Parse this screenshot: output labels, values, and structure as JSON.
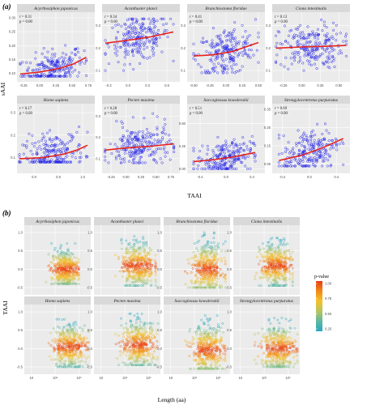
{
  "chart_data": [
    {
      "type": "scatter",
      "panel_label": "(a)",
      "xlabel": "TAAI",
      "ylabel": "sAAI",
      "grid": true,
      "marker_color": "#1f1fe6",
      "trend_color": "#e6231e",
      "panels": [
        {
          "name": "Acyrthosiphon japonicus",
          "r": "r = 0.31",
          "p": "p = 0.00",
          "xticks": [
            "-0.25",
            "0.00",
            "0.25",
            "0.50",
            "0.75"
          ],
          "yticks": [
            "0.10",
            "0.15",
            "0.20",
            "0.25",
            "0.30"
          ],
          "x_range": [
            -0.35,
            0.85
          ],
          "y_range": [
            0.07,
            0.32
          ],
          "cloud": {
            "x": [
              -0.3,
              0.72
            ],
            "y": [
              0.09,
              0.24
            ]
          },
          "trend": {
            "x": [
              -0.3,
              0.0,
              0.3,
              0.5,
              0.72
            ],
            "y": [
              0.098,
              0.105,
              0.118,
              0.132,
              0.158
            ]
          }
        },
        {
          "name": "Acanthaster planci",
          "r": "r = 0.34",
          "p": "p = 0.00",
          "xticks": [
            "-0.3",
            "0.0",
            "0.3",
            "0.6"
          ],
          "yticks": [
            "0.1",
            "0.2",
            "0.3"
          ],
          "x_range": [
            -0.4,
            0.8
          ],
          "y_range": [
            0.05,
            0.36
          ],
          "cloud": {
            "x": [
              -0.35,
              0.7
            ],
            "y": [
              0.1,
              0.33
            ]
          },
          "trend": {
            "x": [
              -0.35,
              0.0,
              0.35,
              0.7
            ],
            "y": [
              0.222,
              0.235,
              0.25,
              0.272
            ]
          }
        },
        {
          "name": "Branchiostoma floridae",
          "r": "r = 0.41",
          "p": "p = 0.00",
          "xticks": [
            "-0.50",
            "-0.25",
            "0.00",
            "0.25",
            "0.50"
          ],
          "yticks": [
            "0.1",
            "0.2",
            "0.3"
          ],
          "x_range": [
            -0.6,
            0.6
          ],
          "y_range": [
            0.05,
            0.36
          ],
          "cloud": {
            "x": [
              -0.5,
              0.5
            ],
            "y": [
              0.09,
              0.33
            ]
          },
          "trend": {
            "x": [
              -0.5,
              -0.2,
              0.1,
              0.3,
              0.5
            ],
            "y": [
              0.165,
              0.17,
              0.185,
              0.205,
              0.225
            ]
          }
        },
        {
          "name": "Ciona intestinalis",
          "r": "r = 0.13",
          "p": "p = 0.00",
          "xticks": [
            "-0.25",
            "0.00",
            "0.25",
            "0.50"
          ],
          "yticks": [
            "0.1",
            "0.2",
            "0.3"
          ],
          "x_range": [
            -0.4,
            0.65
          ],
          "y_range": [
            0.05,
            0.36
          ],
          "cloud": {
            "x": [
              -0.35,
              0.6
            ],
            "y": [
              0.1,
              0.33
            ]
          },
          "trend": {
            "x": [
              -0.35,
              0.0,
              0.3,
              0.6
            ],
            "y": [
              0.2,
              0.205,
              0.208,
              0.212
            ]
          }
        },
        {
          "name": "Homo sapiens",
          "r": "r = 0.17",
          "p": "p = 0.00",
          "xticks": [
            "0.0",
            "0.5",
            "1.0"
          ],
          "yticks": [
            "0.1",
            "0.2",
            "0.3"
          ],
          "x_range": [
            -0.35,
            1.25
          ],
          "y_range": [
            0.03,
            0.34
          ],
          "cloud": {
            "x": [
              -0.3,
              1.1
            ],
            "y": [
              0.08,
              0.3
            ]
          },
          "trend": {
            "x": [
              -0.3,
              0.2,
              0.6,
              0.9,
              1.1
            ],
            "y": [
              0.095,
              0.1,
              0.115,
              0.135,
              0.155
            ]
          }
        },
        {
          "name": "Pecten maxima",
          "r": "r = 0.28",
          "p": "p = 0.00",
          "xticks": [
            "-0.25",
            "0.00",
            "0.25",
            "0.50",
            "0.75"
          ],
          "yticks": [
            "0.1",
            "0.2",
            "0.3"
          ],
          "x_range": [
            -0.4,
            0.9
          ],
          "y_range": [
            0.03,
            0.36
          ],
          "cloud": {
            "x": [
              -0.35,
              0.8
            ],
            "y": [
              0.08,
              0.32
            ]
          },
          "trend": {
            "x": [
              -0.35,
              0.0,
              0.4,
              0.8
            ],
            "y": [
              0.14,
              0.15,
              0.158,
              0.17
            ]
          }
        },
        {
          "name": "Saccoglossus kowalevskii",
          "r": "r = 0.51",
          "p": "p = 0.00",
          "xticks": [
            "-0.4",
            "0.0",
            "0.4"
          ],
          "yticks": [
            "0.00",
            "0.25",
            "0.50"
          ],
          "x_range": [
            -0.6,
            0.6
          ],
          "y_range": [
            -0.05,
            0.72
          ],
          "cloud": {
            "x": [
              -0.5,
              0.45
            ],
            "y": [
              0.0,
              0.42
            ]
          },
          "trend": {
            "x": [
              -0.5,
              -0.2,
              0.1,
              0.45
            ],
            "y": [
              0.08,
              0.1,
              0.13,
              0.18
            ]
          }
        },
        {
          "name": "Strongylocentrotus purpuratus",
          "r": "r = 0.69",
          "p": "p = 0.00",
          "xticks": [
            "-0.4",
            "0.0",
            "0.4"
          ],
          "yticks": [
            "0.05",
            "0.15",
            "0.25",
            "0.35"
          ],
          "x_range": [
            -0.55,
            0.6
          ],
          "y_range": [
            0.0,
            0.38
          ],
          "cloud": {
            "x": [
              -0.45,
              0.5
            ],
            "y": [
              0.04,
              0.34
            ]
          },
          "trend": {
            "x": [
              -0.45,
              -0.1,
              0.2,
              0.5
            ],
            "y": [
              0.07,
              0.1,
              0.14,
              0.19
            ]
          }
        }
      ]
    },
    {
      "type": "scatter",
      "panel_label": "(b)",
      "xlabel": "Length (aa)",
      "ylabel": "TAAI",
      "grid": true,
      "legend": {
        "title": "p-value",
        "placement": "right",
        "ticks": [
          "1.00",
          "0.75",
          "0.50",
          "0.25"
        ],
        "colors": [
          "#e83b14",
          "#f08a18",
          "#f5c22a",
          "#b8c45e",
          "#5fb8a0",
          "#2aa8c0"
        ]
      },
      "panels": [
        {
          "name": "Acyrthosiphon japonicus",
          "yticks": [
            "1.0",
            "0.5",
            "0.0",
            "-0.5"
          ],
          "xticks": [
            "10",
            "10²",
            "10³"
          ],
          "x_log_range": [
            0.7,
            3.5
          ],
          "cloud_x_log": [
            1.6,
            3.0
          ],
          "y_range": [
            -0.7,
            1.2
          ],
          "cloud_y": [
            -0.4,
            0.7
          ],
          "centre_y": 0.0
        },
        {
          "name": "Acanthaster planci",
          "yticks": [
            "1.0",
            "0.5",
            "0.0",
            "-0.5"
          ],
          "xticks": [
            "10",
            "10²",
            "10³"
          ],
          "x_log_range": [
            0.7,
            3.5
          ],
          "cloud_x_log": [
            1.6,
            3.3
          ],
          "y_range": [
            -0.7,
            1.2
          ],
          "cloud_y": [
            -0.45,
            0.9
          ],
          "centre_y": 0.1
        },
        {
          "name": "Branchiostoma floridae",
          "yticks": [
            "1.0",
            "0.5",
            "0.0",
            "-0.5"
          ],
          "xticks": [
            "10",
            "10²",
            "10³"
          ],
          "x_log_range": [
            0.7,
            3.5
          ],
          "cloud_x_log": [
            1.6,
            3.3
          ],
          "y_range": [
            -0.7,
            1.2
          ],
          "cloud_y": [
            -0.5,
            1.0
          ],
          "centre_y": 0.0
        },
        {
          "name": "Ciona intestinalis",
          "yticks": [
            "1.0",
            "0.5",
            "0.0",
            "-0.5"
          ],
          "xticks": [
            "10",
            "10²",
            "10³"
          ],
          "x_log_range": [
            0.7,
            3.5
          ],
          "cloud_x_log": [
            1.6,
            3.2
          ],
          "y_range": [
            -0.7,
            1.2
          ],
          "cloud_y": [
            -0.45,
            0.85
          ],
          "centre_y": 0.1
        },
        {
          "name": "Homo sapiens",
          "yticks": [
            "1.0",
            "0.5",
            "0.0",
            "-0.5"
          ],
          "xticks": [
            "10",
            "10²",
            "10³"
          ],
          "x_log_range": [
            0.7,
            3.5
          ],
          "cloud_x_log": [
            1.6,
            3.4
          ],
          "y_range": [
            -0.7,
            1.2
          ],
          "cloud_y": [
            -0.5,
            0.8
          ],
          "centre_y": 0.05
        },
        {
          "name": "Pecten maxima",
          "yticks": [
            "1.0",
            "0.5",
            "0.0",
            "-0.5"
          ],
          "xticks": [
            "10",
            "10²",
            "10³"
          ],
          "x_log_range": [
            0.7,
            3.5
          ],
          "cloud_x_log": [
            1.6,
            3.4
          ],
          "y_range": [
            -0.7,
            1.2
          ],
          "cloud_y": [
            -0.45,
            0.95
          ],
          "centre_y": 0.1
        },
        {
          "name": "Saccoglossus kowalevskii",
          "yticks": [
            "1.0",
            "0.5",
            "0.0",
            "-0.5"
          ],
          "xticks": [
            "10",
            "10²",
            "10³"
          ],
          "x_log_range": [
            0.7,
            3.5
          ],
          "cloud_x_log": [
            1.6,
            3.3
          ],
          "y_range": [
            -0.7,
            1.2
          ],
          "cloud_y": [
            -0.55,
            0.9
          ],
          "centre_y": -0.05
        },
        {
          "name": "Strongylocentrotus purpuratus",
          "yticks": [
            "1.0",
            "0.5",
            "0.0",
            "-0.5"
          ],
          "xticks": [
            "10",
            "10²",
            "10³"
          ],
          "x_log_range": [
            0.7,
            3.5
          ],
          "cloud_x_log": [
            1.6,
            3.4
          ],
          "y_range": [
            -0.7,
            1.2
          ],
          "cloud_y": [
            -0.5,
            0.85
          ],
          "centre_y": 0.0
        }
      ]
    }
  ]
}
